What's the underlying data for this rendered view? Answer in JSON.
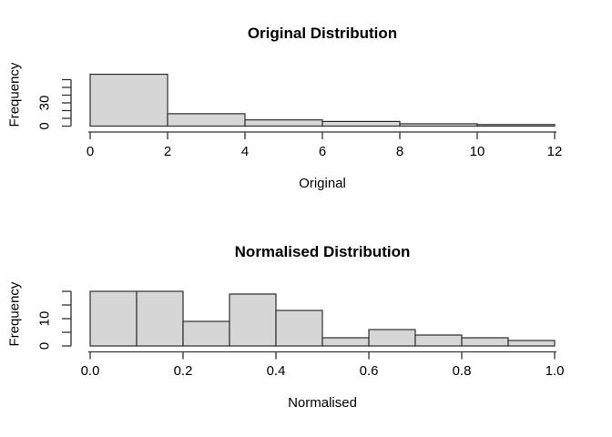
{
  "chart_data": [
    {
      "type": "bar",
      "subtype": "histogram",
      "title": "Original Distribution",
      "xlabel": "Original",
      "ylabel": "Frequency",
      "bin_start": 0,
      "bin_width": 2,
      "categories": [
        "0-2",
        "2-4",
        "4-6",
        "6-8",
        "8-10",
        "10-12"
      ],
      "values": [
        67,
        16,
        8,
        6,
        3,
        2
      ],
      "xlim": [
        0,
        12
      ],
      "ylim": [
        0,
        60
      ],
      "grid": false,
      "legend": "none",
      "x_ticks": [
        {
          "v": 0,
          "label": "0"
        },
        {
          "v": 2,
          "label": "2"
        },
        {
          "v": 4,
          "label": "4"
        },
        {
          "v": 6,
          "label": "6"
        },
        {
          "v": 8,
          "label": "8"
        },
        {
          "v": 10,
          "label": "10"
        },
        {
          "v": 12,
          "label": "12"
        }
      ],
      "y_ticks": [
        {
          "v": 0,
          "label": "0"
        },
        {
          "v": 10,
          "label": ""
        },
        {
          "v": 20,
          "label": ""
        },
        {
          "v": 30,
          "label": "30"
        },
        {
          "v": 40,
          "label": ""
        },
        {
          "v": 50,
          "label": ""
        },
        {
          "v": 60,
          "label": ""
        }
      ],
      "bar_fill": "#d6d6d6",
      "bar_stroke": "#2e2e2e",
      "axis_color": "#333333"
    },
    {
      "type": "bar",
      "subtype": "histogram",
      "title": "Normalised Distribution",
      "xlabel": "Normalised",
      "ylabel": "Frequency",
      "bin_start": 0,
      "bin_width": 0.1,
      "categories": [
        "0.0-0.1",
        "0.1-0.2",
        "0.2-0.3",
        "0.3-0.4",
        "0.4-0.5",
        "0.5-0.6",
        "0.6-0.7",
        "0.7-0.8",
        "0.8-0.9",
        "0.9-1.0"
      ],
      "values": [
        20,
        20,
        9,
        19,
        13,
        3,
        6,
        4,
        3,
        2
      ],
      "xlim": [
        0,
        1
      ],
      "ylim": [
        0,
        20
      ],
      "grid": false,
      "legend": "none",
      "x_ticks": [
        {
          "v": 0,
          "label": "0.0"
        },
        {
          "v": 0.2,
          "label": "0.2"
        },
        {
          "v": 0.4,
          "label": "0.4"
        },
        {
          "v": 0.6,
          "label": "0.6"
        },
        {
          "v": 0.8,
          "label": "0.8"
        },
        {
          "v": 1.0,
          "label": "1.0"
        }
      ],
      "y_ticks": [
        {
          "v": 0,
          "label": "0"
        },
        {
          "v": 5,
          "label": ""
        },
        {
          "v": 10,
          "label": "10"
        },
        {
          "v": 15,
          "label": ""
        },
        {
          "v": 20,
          "label": ""
        }
      ],
      "bar_fill": "#d6d6d6",
      "bar_stroke": "#2e2e2e",
      "axis_color": "#333333"
    }
  ]
}
